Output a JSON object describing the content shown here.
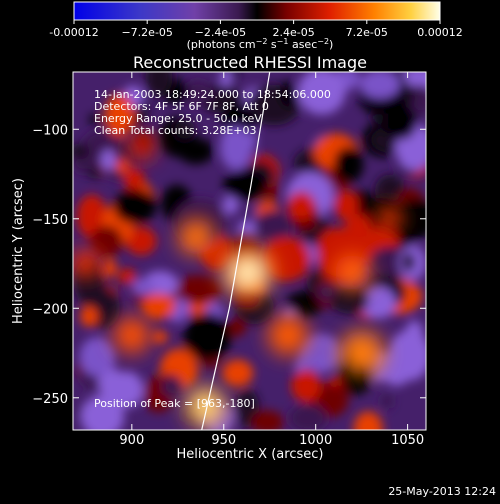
{
  "colorbar": {
    "tick_labels": [
      "-0.00012",
      "−7.2e-05",
      "−2.4e-05",
      "2.4e-05",
      "7.2e-05",
      "0.00012"
    ],
    "units_text": "(photons cm",
    "units_exp1": "−2",
    "units_mid": " s",
    "units_exp2": "−1",
    "units_tail": " asec",
    "units_exp3": "−2",
    "units_close": ")"
  },
  "chart_data": {
    "type": "heatmap",
    "title": "Reconstructed RHESSI Image",
    "xlabel": "Heliocentric X (arcsec)",
    "ylabel": "Heliocentric Y (arcsec)",
    "xlim": [
      868,
      1060
    ],
    "ylim": [
      -268,
      -68
    ],
    "xticks": [
      900,
      950,
      1000,
      1050
    ],
    "yticks": [
      -100,
      -150,
      -200,
      -250
    ],
    "colorbar_range": [
      -0.00012,
      0.00012
    ],
    "annotations": [
      "14-Jan-2003 18:49:24.000 to 18:54:06.000",
      "Detectors: 4F 5F 6F 7F 8F, Att 0",
      "Energy Range: 25.0 - 50.0 keV",
      "Clean    Total counts: 3.28E+03"
    ],
    "peak_label": "Position of Peak = [963,-180]",
    "peak": [
      963,
      -180
    ],
    "limb_line": [
      [
        938,
        -268
      ],
      [
        953,
        -200
      ],
      [
        965,
        -130
      ],
      [
        975,
        -68
      ]
    ]
  },
  "footer": {
    "date": "25-May-2013 12:24"
  }
}
